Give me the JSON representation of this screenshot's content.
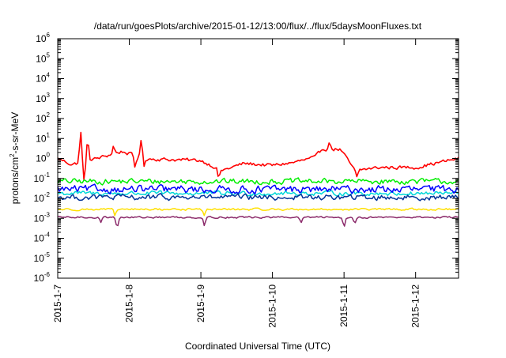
{
  "chart_data": {
    "type": "line",
    "title": "/data/run/goesPlots/archive/2015-01-12/13:00/flux/../flux/5daysMoonFluxes.txt",
    "xlabel": "Coordinated Universal Time (UTC)",
    "ylabel_parts": {
      "pre": "protons/cm",
      "sup": "2",
      "post": "-s-sr-MeV"
    },
    "y_scale": "log",
    "ylim_exp": [
      -6,
      6
    ],
    "y_tick_exponents": [
      -6,
      -5,
      -4,
      -3,
      -2,
      -1,
      0,
      1,
      2,
      3,
      4,
      5,
      6
    ],
    "y_tick_base": "10",
    "x_ticks": [
      "2015-1-7",
      "2015-1-8",
      "2015-1-9",
      "2015-1-10",
      "2015-1-11",
      "2015-1-12"
    ],
    "x_range_days": [
      0,
      5.6
    ],
    "grid": false,
    "legend": "none",
    "series": [
      {
        "color": "#ff0000",
        "exp": 0.0,
        "noise": 0.14,
        "spikes": [
          [
            0.32,
            1.5
          ],
          [
            0.37,
            -0.9
          ],
          [
            0.42,
            1.0
          ],
          [
            0.78,
            0.4
          ],
          [
            1.08,
            -0.6
          ],
          [
            1.17,
            1.0
          ],
          [
            1.2,
            -0.5
          ],
          [
            2.25,
            -0.5
          ],
          [
            3.8,
            0.3
          ],
          [
            4.18,
            -0.4
          ]
        ],
        "drift": [
          [
            0,
            0.0
          ],
          [
            0.2,
            -0.3
          ],
          [
            0.55,
            0.0
          ],
          [
            0.9,
            0.35
          ],
          [
            1.2,
            0.0
          ],
          [
            1.5,
            -0.05
          ],
          [
            2.0,
            -0.1
          ],
          [
            2.3,
            -0.6
          ],
          [
            2.6,
            -0.25
          ],
          [
            3.0,
            -0.35
          ],
          [
            3.3,
            -0.2
          ],
          [
            3.6,
            0.05
          ],
          [
            3.7,
            0.5
          ],
          [
            3.95,
            0.45
          ],
          [
            4.15,
            -0.6
          ],
          [
            4.5,
            -0.45
          ],
          [
            5.0,
            -0.45
          ],
          [
            5.6,
            0.0
          ]
        ]
      },
      {
        "color": "#00ee00",
        "exp": -1.15,
        "noise": 0.22,
        "spikes": [],
        "drift": [
          [
            0,
            0
          ],
          [
            5.6,
            0
          ]
        ]
      },
      {
        "color": "#00d8d8",
        "exp": -1.75,
        "noise": 0.18,
        "spikes": [],
        "drift": [
          [
            0,
            0
          ],
          [
            5.6,
            0
          ]
        ]
      },
      {
        "color": "#0000ff",
        "exp": -1.55,
        "noise": 0.3,
        "spikes": [],
        "drift": [
          [
            0,
            0
          ],
          [
            5.6,
            0
          ]
        ]
      },
      {
        "color": "#003399",
        "exp": -1.95,
        "noise": 0.22,
        "spikes": [],
        "drift": [
          [
            0,
            0
          ],
          [
            5.6,
            0
          ]
        ]
      },
      {
        "color": "#ffe000",
        "exp": -2.55,
        "noise": 0.08,
        "spikes": [
          [
            0.8,
            -0.4
          ],
          [
            2.05,
            -0.3
          ]
        ],
        "drift": [
          [
            0,
            0
          ],
          [
            5.6,
            0
          ]
        ]
      },
      {
        "color": "#8b2a6a",
        "exp": -2.95,
        "noise": 0.07,
        "spikes": [
          [
            0.6,
            -0.25
          ],
          [
            0.83,
            -0.5
          ],
          [
            2.05,
            -0.4
          ],
          [
            3.4,
            -0.3
          ],
          [
            4.0,
            -0.5
          ],
          [
            4.15,
            -0.3
          ]
        ],
        "drift": [
          [
            0,
            0
          ],
          [
            5.6,
            0
          ]
        ]
      }
    ]
  }
}
